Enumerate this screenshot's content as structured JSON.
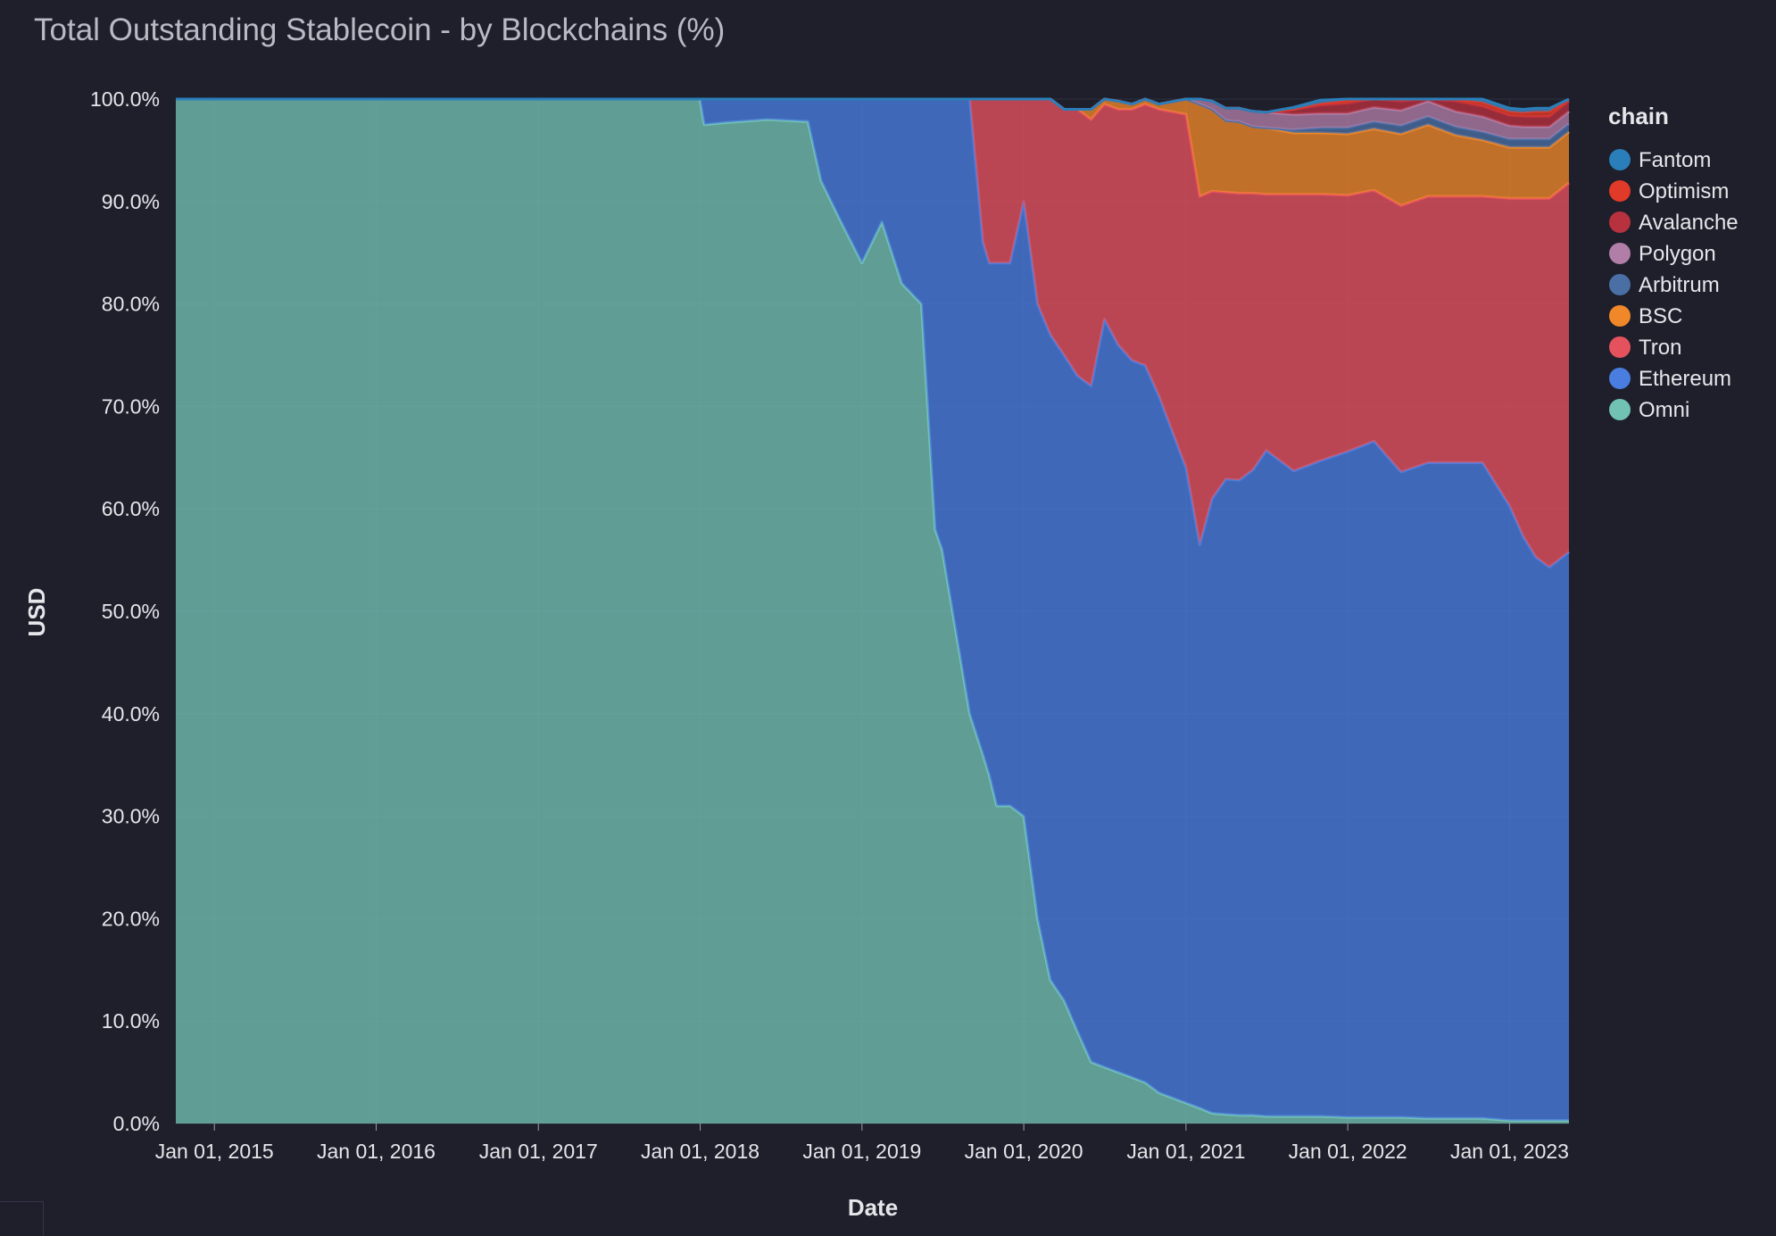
{
  "chart_data": {
    "type": "area",
    "stacked": true,
    "normalized": true,
    "title": "Total Outstanding Stablecoin - by Blockchains (%)",
    "xlabel": "Date",
    "ylabel": "USD",
    "ylim": [
      0,
      100
    ],
    "xlim": [
      "2014-10-06",
      "2023-05-15"
    ],
    "x_ticks": [
      "Jan 01, 2015",
      "Jan 01, 2016",
      "Jan 01, 2017",
      "Jan 01, 2018",
      "Jan 01, 2019",
      "Jan 01, 2020",
      "Jan 01, 2021",
      "Jan 01, 2022",
      "Jan 01, 2023"
    ],
    "y_ticks": [
      "0.0%",
      "10.0%",
      "20.0%",
      "30.0%",
      "40.0%",
      "50.0%",
      "60.0%",
      "70.0%",
      "80.0%",
      "90.0%",
      "100.0%"
    ],
    "legend_title": "chain",
    "legend_position": "right",
    "grid": true,
    "x": [
      "2014-10-06",
      "2017-12-31",
      "2018-01-10",
      "2018-03-01",
      "2018-06-01",
      "2018-09-01",
      "2018-10-01",
      "2018-11-15",
      "2019-01-01",
      "2019-02-15",
      "2019-04-01",
      "2019-05-15",
      "2019-06-15",
      "2019-07-01",
      "2019-08-01",
      "2019-09-01",
      "2019-10-01",
      "2019-10-15",
      "2019-11-01",
      "2019-12-01",
      "2020-01-01",
      "2020-02-01",
      "2020-03-01",
      "2020-04-01",
      "2020-05-01",
      "2020-06-01",
      "2020-07-01",
      "2020-08-01",
      "2020-09-01",
      "2020-10-01",
      "2020-11-01",
      "2021-01-01",
      "2021-02-01",
      "2021-03-01",
      "2021-04-01",
      "2021-05-01",
      "2021-06-01",
      "2021-07-01",
      "2021-09-01",
      "2021-11-01",
      "2022-01-01",
      "2022-03-01",
      "2022-05-01",
      "2022-07-01",
      "2022-09-01",
      "2022-11-01",
      "2023-01-01",
      "2023-02-01",
      "2023-03-01",
      "2023-04-01",
      "2023-05-15"
    ],
    "series": [
      {
        "name": "Omni",
        "color": "#72c2b4",
        "values": [
          100,
          100,
          97.5,
          97.7,
          98.0,
          97.8,
          92,
          88,
          84,
          88,
          82,
          80,
          58,
          56,
          48,
          40,
          36,
          34,
          31,
          31,
          30,
          20,
          14,
          12,
          9,
          6,
          5.5,
          5,
          4.5,
          4,
          3,
          2,
          1.5,
          1,
          0.9,
          0.8,
          0.8,
          0.7,
          0.7,
          0.7,
          0.6,
          0.6,
          0.6,
          0.5,
          0.5,
          0.5,
          0.3,
          0.3,
          0.3,
          0.3,
          0.3
        ]
      },
      {
        "name": "Ethereum",
        "color": "#4a7de0",
        "values": [
          0,
          0,
          2.5,
          2.3,
          2.0,
          2.2,
          8,
          12,
          16,
          12,
          18,
          20,
          42,
          44,
          52,
          60,
          50,
          50,
          53,
          53,
          60,
          60,
          63,
          63,
          64,
          66,
          73,
          71,
          70,
          70,
          68,
          62,
          55,
          60,
          62,
          62,
          63,
          65,
          63,
          64,
          65,
          66,
          63,
          64,
          64,
          64,
          60,
          57,
          55,
          54,
          55.5
        ]
      },
      {
        "name": "Tron",
        "color": "#e5525e",
        "values": [
          0,
          0,
          0,
          0,
          0,
          0,
          0,
          0,
          0,
          0,
          0,
          0,
          0,
          0,
          0,
          0,
          14,
          16,
          16,
          16,
          10,
          20,
          23,
          24,
          26,
          26,
          21,
          23,
          24.5,
          25.5,
          28,
          34.5,
          34,
          30,
          28,
          28,
          27,
          25,
          27,
          26,
          25,
          24.5,
          26,
          26,
          26,
          26,
          30,
          33,
          35,
          36,
          36
        ]
      },
      {
        "name": "BSC",
        "color": "#f0882a",
        "values": [
          0,
          0,
          0,
          0,
          0,
          0,
          0,
          0,
          0,
          0,
          0,
          0,
          0,
          0,
          0,
          0,
          0,
          0,
          0,
          0,
          0,
          0,
          0,
          0,
          0,
          1,
          0.5,
          0.8,
          0.5,
          0.5,
          0.5,
          1.5,
          9,
          8,
          7,
          7,
          6.5,
          6.5,
          6,
          6,
          6,
          6,
          7,
          7,
          6,
          5.5,
          5,
          5,
          5,
          5,
          5
        ]
      },
      {
        "name": "Arbitrum",
        "color": "#4a6fa5",
        "values": [
          0,
          0,
          0,
          0,
          0,
          0,
          0,
          0,
          0,
          0,
          0,
          0,
          0,
          0,
          0,
          0,
          0,
          0,
          0,
          0,
          0,
          0,
          0,
          0,
          0,
          0,
          0,
          0,
          0,
          0,
          0,
          0,
          0,
          0,
          0,
          0,
          0,
          0,
          0.3,
          0.5,
          0.6,
          0.7,
          0.8,
          0.8,
          0.8,
          0.8,
          0.8,
          0.8,
          0.8,
          0.8,
          0.8
        ]
      },
      {
        "name": "Polygon",
        "color": "#b07ea6",
        "values": [
          0,
          0,
          0,
          0,
          0,
          0,
          0,
          0,
          0,
          0,
          0,
          0,
          0,
          0,
          0,
          0,
          0,
          0,
          0,
          0,
          0,
          0,
          0,
          0,
          0,
          0,
          0,
          0,
          0,
          0,
          0,
          0,
          0.5,
          0.8,
          1.2,
          1.3,
          1.5,
          1.5,
          1.5,
          1.4,
          1.4,
          1.4,
          1.5,
          1.5,
          1.5,
          1.5,
          1.3,
          1.2,
          1.2,
          1.2,
          1.2
        ]
      },
      {
        "name": "Avalanche",
        "color": "#b8313f",
        "values": [
          0,
          0,
          0,
          0,
          0,
          0,
          0,
          0,
          0,
          0,
          0,
          0,
          0,
          0,
          0,
          0,
          0,
          0,
          0,
          0,
          0,
          0,
          0,
          0,
          0,
          0,
          0,
          0,
          0,
          0,
          0,
          0,
          0,
          0,
          0,
          0,
          0,
          0,
          0.5,
          0.8,
          1.0,
          1.0,
          0.9,
          1.0,
          1.0,
          1.0,
          1.0,
          1.0,
          1.0,
          1.0,
          1.0
        ]
      },
      {
        "name": "Optimism",
        "color": "#e23a28",
        "values": [
          0,
          0,
          0,
          0,
          0,
          0,
          0,
          0,
          0,
          0,
          0,
          0,
          0,
          0,
          0,
          0,
          0,
          0,
          0,
          0,
          0,
          0,
          0,
          0,
          0,
          0,
          0,
          0,
          0,
          0,
          0,
          0,
          0,
          0,
          0,
          0,
          0,
          0,
          0,
          0.2,
          0.3,
          0.4,
          0.4,
          0.4,
          0.4,
          0.4,
          0.4,
          0.4,
          0.5,
          0.5,
          0.5
        ]
      },
      {
        "name": "Fantom",
        "color": "#2a7fba",
        "values": [
          0,
          0,
          0,
          0,
          0,
          0,
          0,
          0,
          0,
          0,
          0,
          0,
          0,
          0,
          0,
          0,
          0,
          0,
          0,
          0,
          0,
          0,
          0,
          0,
          0,
          0,
          0,
          0,
          0,
          0,
          0,
          0,
          0,
          0,
          0,
          0,
          0,
          0,
          0.2,
          0.3,
          0.3,
          0.3,
          0.3,
          0.3,
          0.3,
          0.3,
          0.3,
          0.3,
          0.3,
          0.3,
          0.3
        ]
      }
    ]
  }
}
